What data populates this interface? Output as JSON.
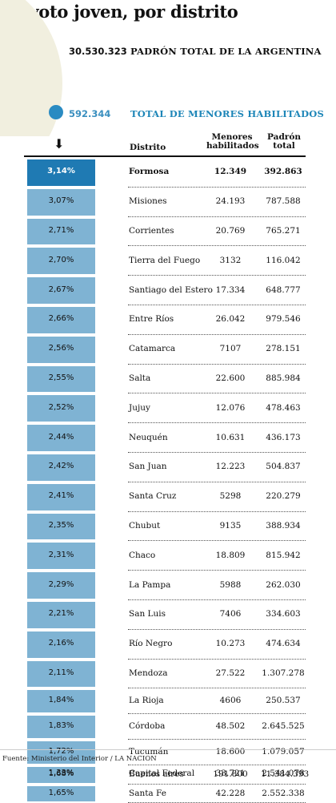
{
  "title": "El voto joven, por distrito",
  "header": {
    "total_value": "30.530.323",
    "total_label": "PADRÓN TOTAL DE LA ARGENTINA",
    "menores_value": "592.344",
    "menores_label": "TOTAL DE MENORES HABILITADOS"
  },
  "columns": {
    "distrito": "Distrito",
    "menores_line1": "Menores",
    "menores_line2": "habilitados",
    "padron_line1": "Padrón",
    "padron_line2": "total"
  },
  "arrow": "⬇",
  "colors": {
    "circle_total": "#f1efdf",
    "circle_menores": "#2a8bc2",
    "bar": "#7fb3d3",
    "bar_highlight": "#1f7ab3"
  },
  "chart_data": {
    "type": "bar",
    "categories": [
      "Formosa",
      "Misiones",
      "Corrientes",
      "Tierra del Fuego",
      "Santiago del Estero",
      "Entre Ríos",
      "Catamarca",
      "Salta",
      "Jujuy",
      "Neuquén",
      "San Juan",
      "Santa Cruz",
      "Chubut",
      "Chaco",
      "La Pampa",
      "San Luis",
      "Río Negro",
      "Mendoza",
      "La Rioja",
      "Córdoba",
      "Tucumán",
      "Buenos aires",
      "Santa Fe",
      "Capital Federal"
    ],
    "percent_labels": [
      "3,14%",
      "3,07%",
      "2,71%",
      "2,70%",
      "2,67%",
      "2,66%",
      "2,56%",
      "2,55%",
      "2,52%",
      "2,44%",
      "2,42%",
      "2,41%",
      "2,35%",
      "2,31%",
      "2,29%",
      "2,21%",
      "2,16%",
      "2,11%",
      "1,84%",
      "1,83%",
      "1,72%",
      "1,68%",
      "1,65%",
      "1,33%"
    ],
    "values": [
      3.14,
      3.07,
      2.71,
      2.7,
      2.67,
      2.66,
      2.56,
      2.55,
      2.52,
      2.44,
      2.42,
      2.41,
      2.35,
      2.31,
      2.29,
      2.21,
      2.16,
      2.11,
      1.84,
      1.83,
      1.72,
      1.68,
      1.65,
      1.33
    ],
    "menores_labels": [
      "12.349",
      "24.193",
      "20.769",
      "3132",
      "17.334",
      "26.042",
      "7107",
      "22.600",
      "12.076",
      "10.631",
      "12.223",
      "5298",
      "9135",
      "18.809",
      "5988",
      "7406",
      "10.273",
      "27.522",
      "4606",
      "48.502",
      "18.600",
      "191.800",
      "42.228",
      "33.721"
    ],
    "padron_labels": [
      "392.863",
      "787.588",
      "765.271",
      "116.042",
      "648.777",
      "979.546",
      "278.151",
      "885.984",
      "478.463",
      "436.173",
      "504.837",
      "220.279",
      "388.934",
      "815.942",
      "262.030",
      "334.603",
      "474.634",
      "1.307.278",
      "250.537",
      "2.645.525",
      "1.079.057",
      "11.384.393",
      "2.552.338",
      "2.541.078"
    ],
    "highlight_index": 0
  },
  "source": "Fuente: Ministerio del Interior / LA NACION"
}
